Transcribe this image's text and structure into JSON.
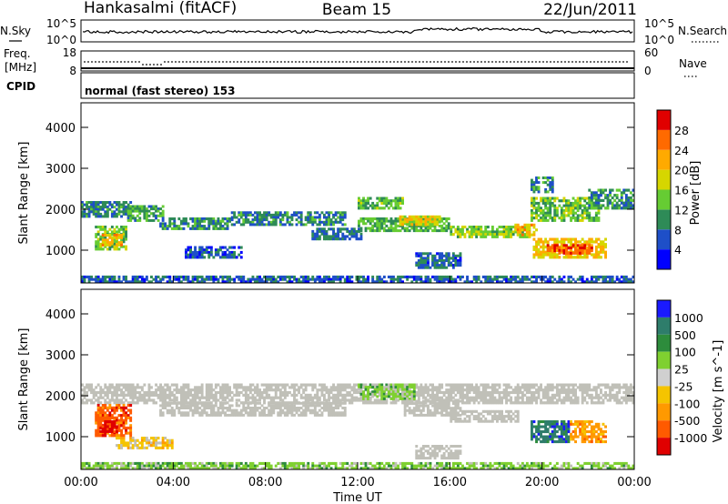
{
  "header": {
    "station": "Hankasalmi (fitACF)",
    "beam": "Beam 15",
    "date": "22/Jun/2011"
  },
  "noise_panel": {
    "left_label": "N.Sky",
    "right_label": "N.Search",
    "left_ticks": [
      "10^5",
      "10^0"
    ],
    "right_ticks": [
      "10^5",
      "10^0"
    ]
  },
  "freq_panel": {
    "left_label_line1": "Freq.",
    "left_label_line2": "[MHz]",
    "right_label": "Nave",
    "left_ticks": [
      "18",
      "8"
    ],
    "right_ticks": [
      "60",
      "0"
    ]
  },
  "cpid_panel": {
    "label": "CPID",
    "text": "normal (fast stereo) 153"
  },
  "colors": {
    "ground_scatter": "#c0c0b8",
    "power_scale": [
      "#0000ff",
      "#1e4fc8",
      "#2e8b57",
      "#66cc33",
      "#d6d600",
      "#ffaa00",
      "#ff6a00",
      "#e00000"
    ],
    "velocity_scale": [
      "#1a1aff",
      "#2e7d6b",
      "#2d8c3c",
      "#7fd030",
      "#d0d0d0",
      "#f5c400",
      "#ff9900",
      "#ff5a00",
      "#e00000"
    ]
  },
  "chart_data": [
    {
      "type": "heatmap",
      "name": "power",
      "ylabel": "Slant Range [km]",
      "x_ticks": [
        "00:00",
        "04:00",
        "08:00",
        "12:00",
        "16:00",
        "20:00",
        "00:00"
      ],
      "y_ticks": [
        1000,
        2000,
        3000,
        4000
      ],
      "ylim": [
        200,
        4600
      ],
      "xlim_hours": [
        0,
        24
      ],
      "colorbar": {
        "label": "Power [dB]",
        "ticks": [
          4,
          8,
          12,
          16,
          20,
          24,
          28
        ],
        "range": [
          0,
          32
        ]
      },
      "bands": [
        {
          "t0": 0.0,
          "t1": 2.2,
          "r0": 1800,
          "r1": 2200,
          "level": 9
        },
        {
          "t0": 0.6,
          "t1": 2.0,
          "r0": 1000,
          "r1": 1600,
          "level": 14
        },
        {
          "t0": 0.9,
          "t1": 1.8,
          "r0": 1100,
          "r1": 1400,
          "level": 21
        },
        {
          "t0": 2.0,
          "t1": 3.6,
          "r0": 1700,
          "r1": 2100,
          "level": 11
        },
        {
          "t0": 3.4,
          "t1": 6.5,
          "r0": 1500,
          "r1": 1800,
          "level": 10
        },
        {
          "t0": 4.5,
          "t1": 7.0,
          "r0": 800,
          "r1": 1100,
          "level": 6
        },
        {
          "t0": 6.5,
          "t1": 11.5,
          "r0": 1600,
          "r1": 1950,
          "level": 9
        },
        {
          "t0": 10.0,
          "t1": 12.2,
          "r0": 1250,
          "r1": 1550,
          "level": 8
        },
        {
          "t0": 12.0,
          "t1": 14.0,
          "r0": 2000,
          "r1": 2300,
          "level": 13
        },
        {
          "t0": 12.0,
          "t1": 16.0,
          "r0": 1450,
          "r1": 1800,
          "level": 12
        },
        {
          "t0": 13.8,
          "t1": 15.6,
          "r0": 1600,
          "r1": 1850,
          "level": 19
        },
        {
          "t0": 16.0,
          "t1": 19.5,
          "r0": 1300,
          "r1": 1600,
          "level": 15
        },
        {
          "t0": 18.8,
          "t1": 19.8,
          "r0": 1350,
          "r1": 1650,
          "level": 22
        },
        {
          "t0": 19.6,
          "t1": 22.8,
          "r0": 800,
          "r1": 1300,
          "level": 20
        },
        {
          "t0": 20.2,
          "t1": 22.2,
          "r0": 900,
          "r1": 1150,
          "level": 27
        },
        {
          "t0": 19.5,
          "t1": 22.5,
          "r0": 1700,
          "r1": 2300,
          "level": 14
        },
        {
          "t0": 22.0,
          "t1": 24.0,
          "r0": 2000,
          "r1": 2500,
          "level": 10
        },
        {
          "t0": 0.0,
          "t1": 24.0,
          "r0": 200,
          "r1": 380,
          "level": 7
        },
        {
          "t0": 14.5,
          "t1": 16.5,
          "r0": 550,
          "r1": 950,
          "level": 7
        },
        {
          "t0": 19.5,
          "t1": 20.5,
          "r0": 2400,
          "r1": 2800,
          "level": 9
        }
      ]
    },
    {
      "type": "heatmap",
      "name": "velocity",
      "ylabel": "Slant Range [km]",
      "xlabel": "Time UT",
      "x_ticks": [
        "00:00",
        "04:00",
        "08:00",
        "12:00",
        "16:00",
        "20:00",
        "00:00"
      ],
      "y_ticks": [
        1000,
        2000,
        3000,
        4000
      ],
      "ylim": [
        200,
        4600
      ],
      "xlim_hours": [
        0,
        24
      ],
      "colorbar": {
        "label": "Velocity [m s^-1]",
        "ticks": [
          "1000",
          "500",
          "100",
          "25",
          "-25",
          "-100",
          "-500",
          "-1000"
        ]
      },
      "bands": [
        {
          "t0": 0.0,
          "t1": 24.0,
          "r0": 1800,
          "r1": 2300,
          "level": 4
        },
        {
          "t0": 0.6,
          "t1": 2.2,
          "r0": 1000,
          "r1": 1800,
          "level": 7
        },
        {
          "t0": 0.8,
          "t1": 1.6,
          "r0": 1100,
          "r1": 1400,
          "level": 8
        },
        {
          "t0": 1.5,
          "t1": 4.0,
          "r0": 700,
          "r1": 1000,
          "level": 5
        },
        {
          "t0": 3.4,
          "t1": 11.5,
          "r0": 1500,
          "r1": 1850,
          "level": 4
        },
        {
          "t0": 12.0,
          "t1": 14.5,
          "r0": 1900,
          "r1": 2300,
          "level": 3
        },
        {
          "t0": 14.0,
          "t1": 16.5,
          "r0": 1500,
          "r1": 1900,
          "level": 4
        },
        {
          "t0": 16.0,
          "t1": 19.0,
          "r0": 1350,
          "r1": 1650,
          "level": 4
        },
        {
          "t0": 19.5,
          "t1": 21.2,
          "r0": 850,
          "r1": 1400,
          "level": 1
        },
        {
          "t0": 21.2,
          "t1": 22.8,
          "r0": 850,
          "r1": 1400,
          "level": 6
        },
        {
          "t0": 0.0,
          "t1": 24.0,
          "r0": 200,
          "r1": 380,
          "level": 3
        },
        {
          "t0": 14.5,
          "t1": 16.5,
          "r0": 450,
          "r1": 800,
          "level": 4
        }
      ]
    }
  ]
}
